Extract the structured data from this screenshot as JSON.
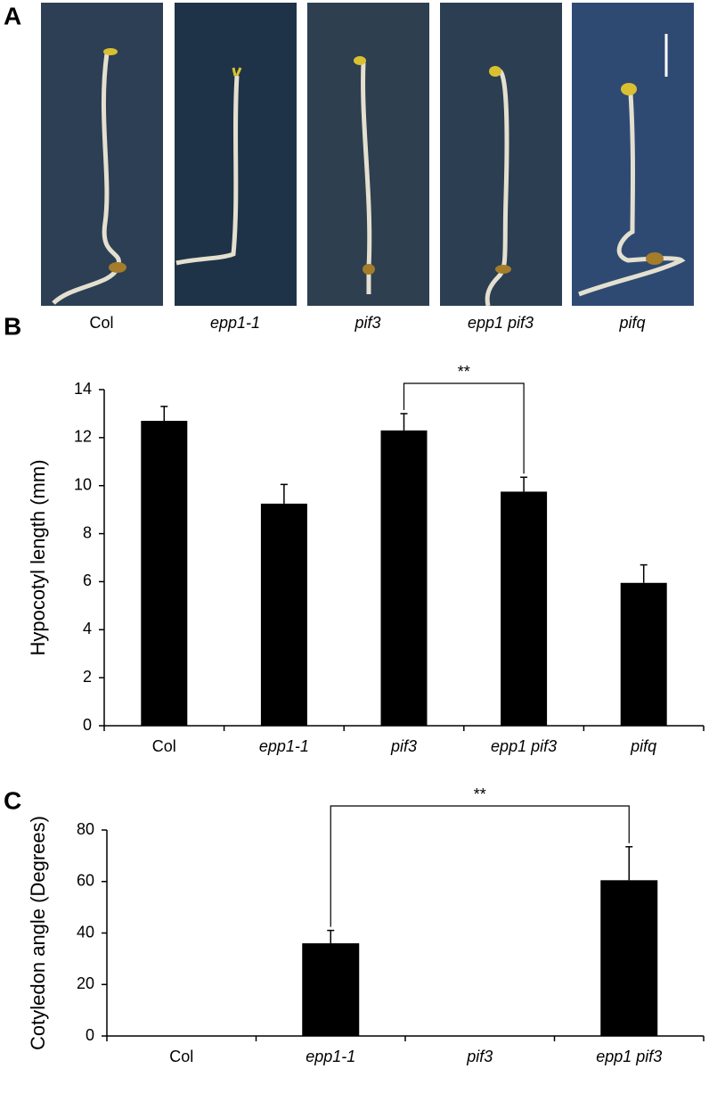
{
  "panel_a": {
    "label": "A",
    "labels": [
      "Col",
      "epp1-1",
      "pif3",
      "epp1 pif3",
      "pifq"
    ]
  },
  "chart_data": [
    {
      "type": "bar",
      "label": "B",
      "ylabel": "Hypocotyl length (mm)",
      "categories": [
        "Col",
        "epp1-1",
        "pif3",
        "epp1 pif3",
        "pifq"
      ],
      "values": [
        12.7,
        9.25,
        12.3,
        9.75,
        5.95
      ],
      "errors": [
        0.6,
        0.8,
        0.7,
        0.6,
        0.75
      ],
      "color": "#000000",
      "ylim": [
        0,
        14
      ],
      "yticks": [
        0,
        2,
        4,
        6,
        8,
        10,
        12,
        14
      ],
      "annotation": "**"
    },
    {
      "type": "bar",
      "label": "C",
      "ylabel": "Cotyledon angle (Degrees)",
      "categories": [
        "Col",
        "epp1-1",
        "pif3",
        "epp1 pif3"
      ],
      "values": [
        0,
        36,
        0,
        60.5
      ],
      "errors": [
        0,
        5,
        0,
        13
      ],
      "color": "#000000",
      "ylim": [
        0,
        80
      ],
      "yticks": [
        0,
        20,
        40,
        60,
        80
      ],
      "annotation": "**"
    }
  ]
}
